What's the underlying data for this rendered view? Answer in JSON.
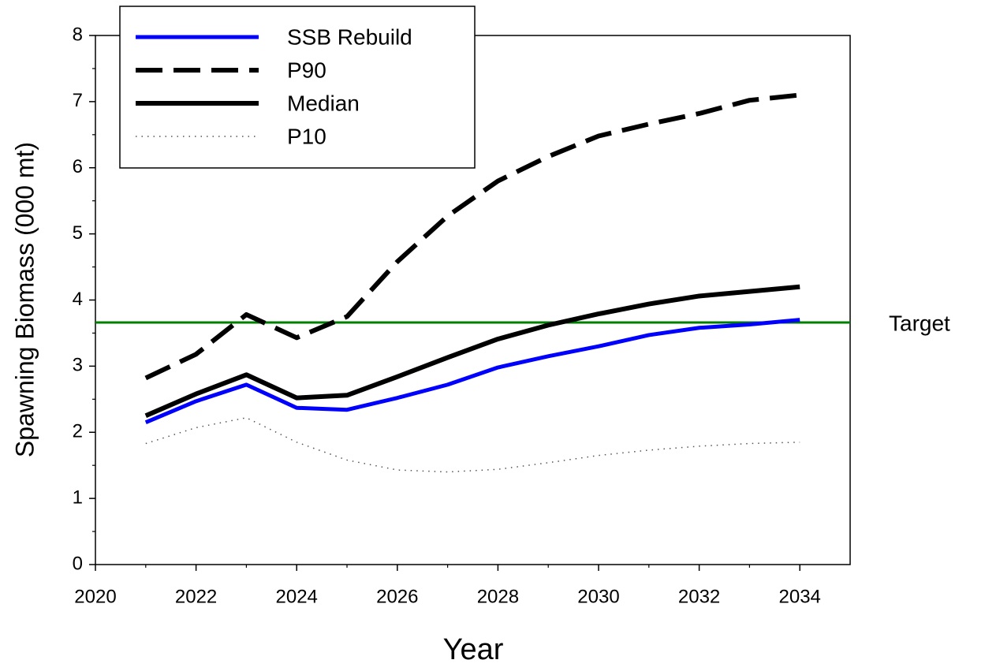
{
  "chart_data": {
    "type": "line",
    "xlabel": "Year",
    "ylabel": "Spawning Biomass (000 mt)",
    "x": [
      2021,
      2022,
      2023,
      2024,
      2025,
      2026,
      2027,
      2028,
      2029,
      2030,
      2031,
      2032,
      2033,
      2034
    ],
    "series": [
      {
        "name": "SSB Rebuild",
        "color": "#0000ff",
        "style": "solid",
        "values": [
          2.15,
          2.47,
          2.72,
          2.37,
          2.34,
          2.52,
          2.72,
          2.98,
          3.15,
          3.3,
          3.47,
          3.58,
          3.63,
          3.7
        ]
      },
      {
        "name": "P90",
        "color": "#000000",
        "style": "dashed",
        "values": [
          2.82,
          3.18,
          3.78,
          3.43,
          3.75,
          4.58,
          5.27,
          5.8,
          6.17,
          6.48,
          6.66,
          6.82,
          7.02,
          7.1
        ]
      },
      {
        "name": "Median",
        "color": "#000000",
        "style": "solid",
        "values": [
          2.25,
          2.58,
          2.87,
          2.52,
          2.56,
          2.84,
          3.13,
          3.41,
          3.62,
          3.79,
          3.94,
          4.06,
          4.13,
          4.2
        ]
      },
      {
        "name": "P10",
        "color": "#000000",
        "style": "dotted",
        "values": [
          1.83,
          2.07,
          2.22,
          1.85,
          1.58,
          1.43,
          1.4,
          1.44,
          1.54,
          1.65,
          1.73,
          1.79,
          1.83,
          1.85
        ]
      }
    ],
    "reference_line": {
      "label": "Target",
      "value": 3.66,
      "color": "#008000"
    },
    "xlim": [
      2020,
      2035
    ],
    "xticks": [
      2020,
      2022,
      2024,
      2026,
      2028,
      2030,
      2032,
      2034
    ],
    "ylim": [
      0,
      8
    ],
    "yticks": [
      0,
      1,
      2,
      3,
      4,
      5,
      6,
      7,
      8
    ],
    "legend": "upper left"
  }
}
